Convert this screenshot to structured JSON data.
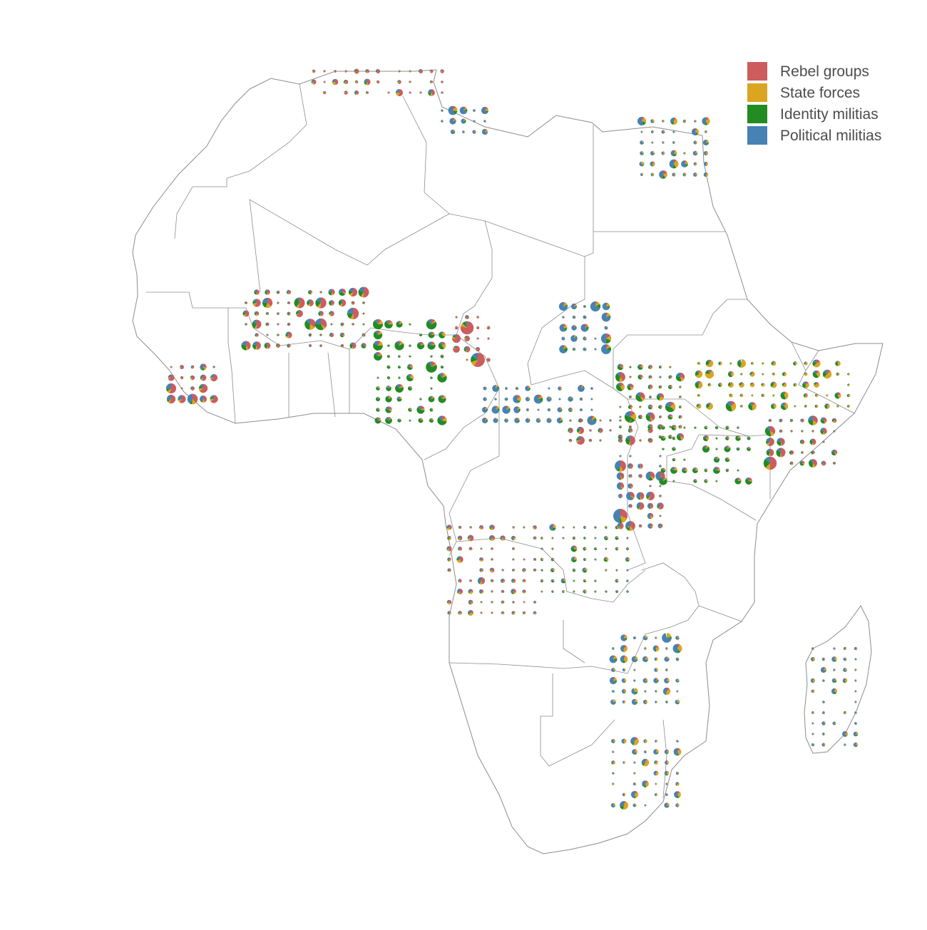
{
  "legend": {
    "items": [
      {
        "label": "Rebel groups",
        "color": "#cd5c5c"
      },
      {
        "label": "State forces",
        "color": "#daa520"
      },
      {
        "label": "Identity militias",
        "color": "#228b22"
      },
      {
        "label": "Political militias",
        "color": "#4682b4"
      }
    ]
  },
  "colors": {
    "background": "#ffffff",
    "border": "#8c8c8c",
    "land": "#ffffff",
    "legend_text": "#4d4d4d"
  },
  "map": {
    "region": "Africa",
    "marker_type": "pie chart per grid cell (area ~ event count, slices by actor type)"
  }
}
